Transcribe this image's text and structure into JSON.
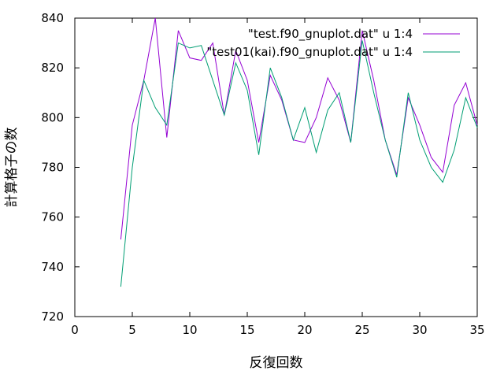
{
  "chart_data": {
    "type": "line",
    "title": "",
    "xlabel": "反復回数",
    "ylabel": "計算格子の数",
    "xlim": [
      0,
      35
    ],
    "ylim": [
      720,
      840
    ],
    "xticks": [
      0,
      5,
      10,
      15,
      20,
      25,
      30,
      35
    ],
    "yticks": [
      720,
      740,
      760,
      780,
      800,
      820,
      840
    ],
    "grid": false,
    "legend_position": "top-right",
    "x": [
      4,
      5,
      6,
      7,
      8,
      9,
      10,
      11,
      12,
      13,
      14,
      15,
      16,
      17,
      18,
      19,
      20,
      21,
      22,
      23,
      24,
      25,
      26,
      27,
      28,
      29,
      30,
      31,
      32,
      33,
      34,
      35
    ],
    "series": [
      {
        "name": "\"test.f90_gnuplot.dat\" u 1:4",
        "color": "#9400d3",
        "values": [
          751,
          797,
          815,
          840,
          792,
          835,
          824,
          823,
          830,
          801,
          827,
          815,
          790,
          817,
          807,
          791,
          790,
          800,
          816,
          807,
          790,
          835,
          815,
          791,
          777,
          808,
          797,
          784,
          778,
          805,
          814,
          797
        ]
      },
      {
        "name": "\"test01(kai).f90_gnuplot.dat\" u 1:4",
        "color": "#009e73",
        "values": [
          732,
          780,
          815,
          804,
          797,
          830,
          828,
          829,
          815,
          801,
          822,
          811,
          785,
          820,
          808,
          791,
          804,
          786,
          803,
          810,
          790,
          831,
          810,
          791,
          776,
          810,
          791,
          780,
          774,
          787,
          808,
          796
        ]
      }
    ]
  }
}
